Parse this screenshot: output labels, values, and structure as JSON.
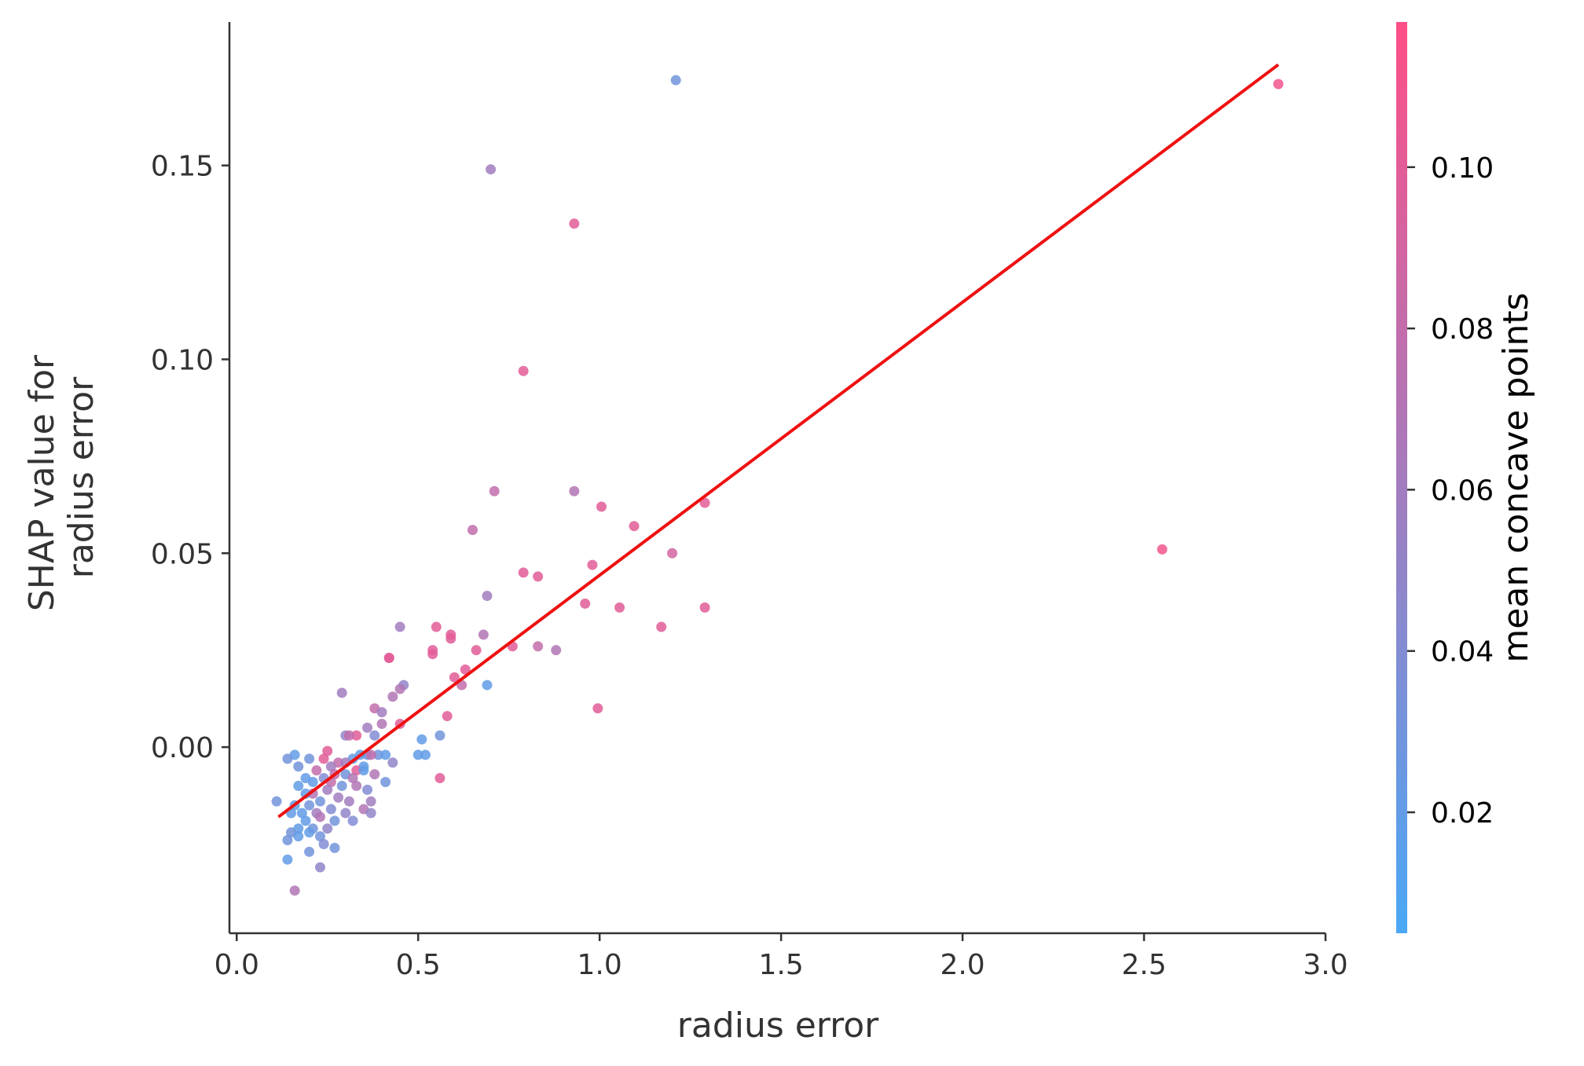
{
  "chart_data": {
    "type": "scatter",
    "title": "",
    "xlabel": "radius error",
    "ylabel_lines": [
      "SHAP value for",
      "radius error"
    ],
    "xlim": [
      -0.02,
      3.0
    ],
    "ylim": [
      -0.048,
      0.187
    ],
    "xticks": [
      0.0,
      0.5,
      1.0,
      1.5,
      2.0,
      2.5,
      3.0
    ],
    "xtick_labels": [
      "0.0",
      "0.5",
      "1.0",
      "1.5",
      "2.0",
      "2.5",
      "3.0"
    ],
    "yticks": [
      0.0,
      0.05,
      0.1,
      0.15
    ],
    "ytick_labels": [
      "0.00",
      "0.05",
      "0.10",
      "0.15"
    ],
    "grid": false,
    "colorbar": {
      "label": "mean concave points",
      "range": [
        0.005,
        0.118
      ],
      "ticks": [
        0.02,
        0.04,
        0.06,
        0.08,
        0.1
      ],
      "tick_labels": [
        "0.02",
        "0.04",
        "0.06",
        "0.08",
        "0.10"
      ],
      "color_low": "#4aa8f5",
      "color_high": "#ff4f86"
    },
    "trend_line": {
      "x": [
        0.115,
        2.87
      ],
      "y": [
        -0.018,
        0.176
      ],
      "color": "#ee1111"
    },
    "points": [
      [
        1.21,
        0.172,
        0.03
      ],
      [
        2.87,
        0.171,
        0.11
      ],
      [
        0.7,
        0.149,
        0.06
      ],
      [
        0.93,
        0.135,
        0.1
      ],
      [
        0.79,
        0.097,
        0.1
      ],
      [
        0.71,
        0.066,
        0.08
      ],
      [
        0.93,
        0.066,
        0.07
      ],
      [
        1.005,
        0.062,
        0.1
      ],
      [
        1.29,
        0.063,
        0.1
      ],
      [
        1.095,
        0.057,
        0.1
      ],
      [
        0.65,
        0.056,
        0.08
      ],
      [
        1.2,
        0.05,
        0.09
      ],
      [
        2.55,
        0.051,
        0.11
      ],
      [
        0.98,
        0.047,
        0.1
      ],
      [
        0.79,
        0.045,
        0.1
      ],
      [
        0.83,
        0.044,
        0.1
      ],
      [
        0.69,
        0.039,
        0.06
      ],
      [
        0.96,
        0.037,
        0.1
      ],
      [
        1.055,
        0.036,
        0.1
      ],
      [
        1.29,
        0.036,
        0.1
      ],
      [
        1.17,
        0.031,
        0.1
      ],
      [
        0.55,
        0.031,
        0.1
      ],
      [
        0.45,
        0.031,
        0.06
      ],
      [
        0.68,
        0.029,
        0.07
      ],
      [
        0.59,
        0.028,
        0.1
      ],
      [
        0.59,
        0.029,
        0.1
      ],
      [
        0.83,
        0.026,
        0.08
      ],
      [
        0.88,
        0.025,
        0.07
      ],
      [
        0.76,
        0.026,
        0.1
      ],
      [
        0.66,
        0.025,
        0.1
      ],
      [
        0.54,
        0.024,
        0.1
      ],
      [
        0.54,
        0.025,
        0.1
      ],
      [
        0.42,
        0.023,
        0.1
      ],
      [
        0.42,
        0.023,
        0.1
      ],
      [
        0.63,
        0.02,
        0.1
      ],
      [
        0.6,
        0.018,
        0.1
      ],
      [
        0.62,
        0.016,
        0.08
      ],
      [
        0.69,
        0.016,
        0.02
      ],
      [
        0.46,
        0.016,
        0.05
      ],
      [
        0.45,
        0.015,
        0.07
      ],
      [
        0.29,
        0.014,
        0.06
      ],
      [
        0.43,
        0.013,
        0.07
      ],
      [
        0.38,
        0.01,
        0.08
      ],
      [
        0.995,
        0.01,
        0.1
      ],
      [
        0.4,
        0.009,
        0.06
      ],
      [
        0.58,
        0.008,
        0.1
      ],
      [
        0.4,
        0.006,
        0.07
      ],
      [
        0.45,
        0.006,
        0.1
      ],
      [
        0.36,
        0.005,
        0.06
      ],
      [
        0.51,
        0.002,
        0.02
      ],
      [
        0.56,
        0.003,
        0.03
      ],
      [
        0.3,
        0.003,
        0.05
      ],
      [
        0.33,
        0.003,
        0.1
      ],
      [
        0.31,
        0.003,
        0.08
      ],
      [
        0.38,
        0.003,
        0.04
      ],
      [
        0.5,
        -0.002,
        0.02
      ],
      [
        0.52,
        -0.002,
        0.02
      ],
      [
        0.39,
        -0.002,
        0.03
      ],
      [
        0.41,
        -0.002,
        0.02
      ],
      [
        0.36,
        -0.002,
        0.03
      ],
      [
        0.25,
        -0.001,
        0.1
      ],
      [
        0.16,
        -0.002,
        0.02
      ],
      [
        0.14,
        -0.003,
        0.03
      ],
      [
        0.2,
        -0.003,
        0.03
      ],
      [
        0.24,
        -0.003,
        0.1
      ],
      [
        0.32,
        -0.003,
        0.02
      ],
      [
        0.34,
        -0.002,
        0.02
      ],
      [
        0.37,
        -0.002,
        0.08
      ],
      [
        0.28,
        -0.004,
        0.08
      ],
      [
        0.43,
        -0.004,
        0.05
      ],
      [
        0.35,
        -0.005,
        0.02
      ],
      [
        0.26,
        -0.005,
        0.06
      ],
      [
        0.3,
        -0.004,
        0.06
      ],
      [
        0.17,
        -0.005,
        0.03
      ],
      [
        0.22,
        -0.006,
        0.08
      ],
      [
        0.33,
        -0.006,
        0.1
      ],
      [
        0.27,
        -0.007,
        0.08
      ],
      [
        0.35,
        -0.006,
        0.02
      ],
      [
        0.3,
        -0.007,
        0.03
      ],
      [
        0.38,
        -0.007,
        0.07
      ],
      [
        0.24,
        -0.008,
        0.04
      ],
      [
        0.32,
        -0.008,
        0.07
      ],
      [
        0.56,
        -0.008,
        0.1
      ],
      [
        0.19,
        -0.008,
        0.02
      ],
      [
        0.41,
        -0.009,
        0.03
      ],
      [
        0.21,
        -0.009,
        0.02
      ],
      [
        0.26,
        -0.009,
        0.08
      ],
      [
        0.17,
        -0.01,
        0.02
      ],
      [
        0.29,
        -0.01,
        0.03
      ],
      [
        0.33,
        -0.01,
        0.07
      ],
      [
        0.36,
        -0.011,
        0.04
      ],
      [
        0.25,
        -0.011,
        0.06
      ],
      [
        0.21,
        -0.012,
        0.07
      ],
      [
        0.19,
        -0.012,
        0.02
      ],
      [
        0.11,
        -0.014,
        0.03
      ],
      [
        0.28,
        -0.013,
        0.06
      ],
      [
        0.23,
        -0.014,
        0.03
      ],
      [
        0.31,
        -0.014,
        0.06
      ],
      [
        0.37,
        -0.014,
        0.06
      ],
      [
        0.16,
        -0.015,
        0.02
      ],
      [
        0.2,
        -0.015,
        0.03
      ],
      [
        0.26,
        -0.016,
        0.04
      ],
      [
        0.35,
        -0.016,
        0.07
      ],
      [
        0.15,
        -0.017,
        0.02
      ],
      [
        0.18,
        -0.017,
        0.02
      ],
      [
        0.22,
        -0.017,
        0.06
      ],
      [
        0.3,
        -0.017,
        0.05
      ],
      [
        0.37,
        -0.017,
        0.05
      ],
      [
        0.23,
        -0.018,
        0.07
      ],
      [
        0.27,
        -0.019,
        0.03
      ],
      [
        0.19,
        -0.019,
        0.02
      ],
      [
        0.32,
        -0.019,
        0.04
      ],
      [
        0.17,
        -0.021,
        0.02
      ],
      [
        0.21,
        -0.021,
        0.03
      ],
      [
        0.25,
        -0.021,
        0.05
      ],
      [
        0.15,
        -0.022,
        0.03
      ],
      [
        0.17,
        -0.023,
        0.02
      ],
      [
        0.2,
        -0.022,
        0.02
      ],
      [
        0.23,
        -0.023,
        0.03
      ],
      [
        0.14,
        -0.024,
        0.03
      ],
      [
        0.24,
        -0.025,
        0.04
      ],
      [
        0.27,
        -0.026,
        0.03
      ],
      [
        0.2,
        -0.027,
        0.03
      ],
      [
        0.14,
        -0.029,
        0.02
      ],
      [
        0.23,
        -0.031,
        0.05
      ],
      [
        0.16,
        -0.037,
        0.07
      ]
    ]
  }
}
